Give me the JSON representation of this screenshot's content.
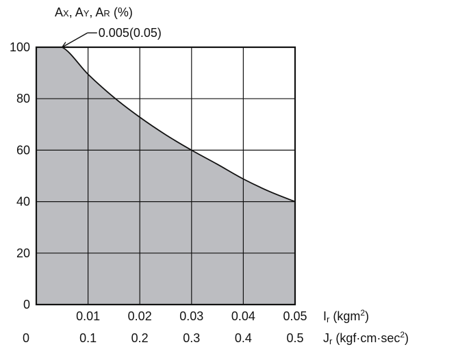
{
  "chart_data": {
    "type": "area",
    "title": "",
    "y_axis": {
      "label_parts": [
        {
          "main": "A",
          "sub": "X",
          "sep": ", "
        },
        {
          "main": "A",
          "sub": "Y",
          "sep": ", "
        },
        {
          "main": "A",
          "sub": "R",
          "sep": " "
        }
      ],
      "unit": "(%)",
      "range": [
        0,
        100
      ],
      "ticks": [
        "0",
        "20",
        "40",
        "60",
        "80",
        "100"
      ]
    },
    "x_axis_primary": {
      "var_main": "I",
      "var_sub": "r",
      "unit_before": "(kgm",
      "unit_sup": "2",
      "unit_after": ")",
      "range": [
        0,
        0.05
      ],
      "ticks": [
        "0.01",
        "0.02",
        "0.03",
        "0.04",
        "0.05"
      ]
    },
    "x_axis_secondary": {
      "var_main": "J",
      "var_sub": "r",
      "unit_before": "(kgf·cm·sec",
      "unit_sup": "2",
      "unit_after": ")",
      "range": [
        0,
        0.5
      ],
      "ticks": [
        "0",
        "0.1",
        "0.2",
        "0.3",
        "0.4",
        "0.5"
      ]
    },
    "grid": true,
    "fill_color": "#bcbdc1",
    "series": [
      {
        "x": [
          0,
          0.005,
          0.01,
          0.015,
          0.02,
          0.025,
          0.03,
          0.035,
          0.04,
          0.045,
          0.05
        ],
        "y": [
          100,
          100,
          89.5,
          80.5,
          72.8,
          66.0,
          60.0,
          54.5,
          48.8,
          44.0,
          40.0
        ]
      }
    ],
    "annotation": {
      "text": "0.005(0.05)",
      "x": 0.005,
      "y": 100
    }
  }
}
